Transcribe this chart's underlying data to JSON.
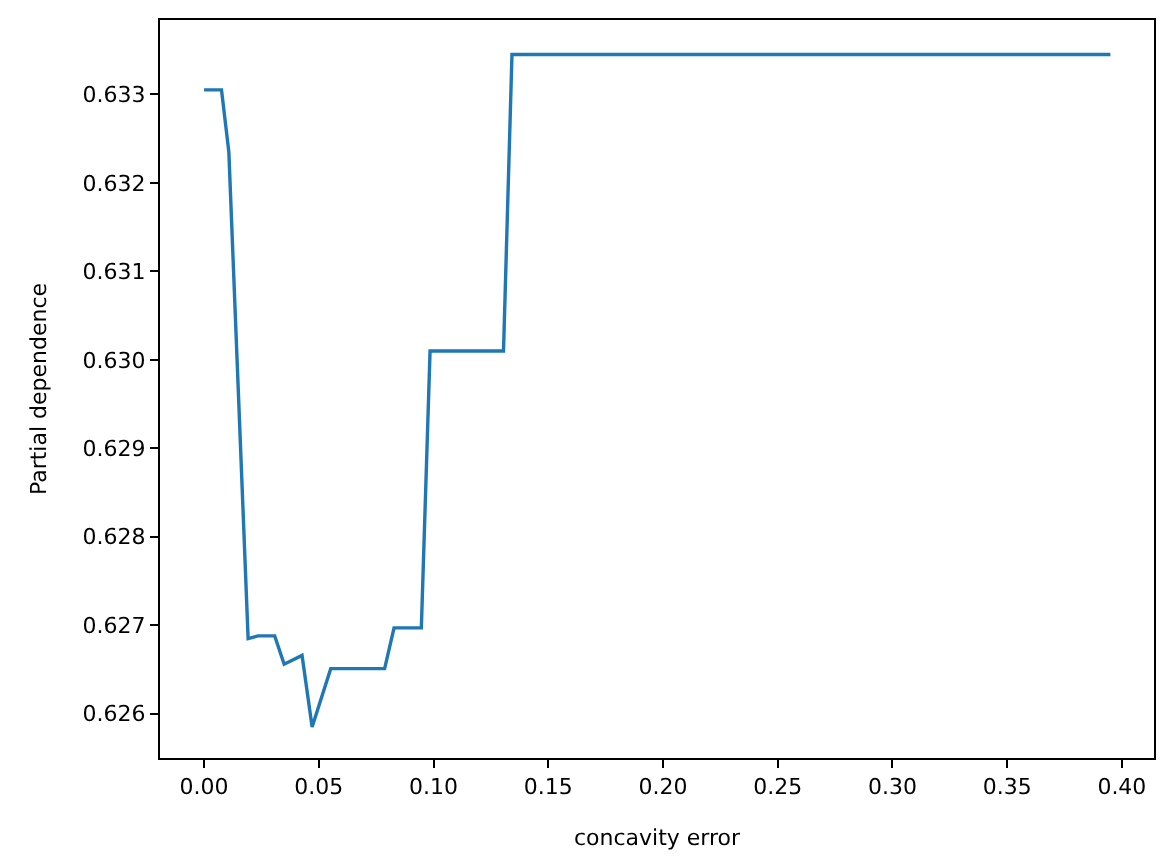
{
  "chart_data": {
    "type": "line",
    "xlabel": "concavity error",
    "ylabel": "Partial dependence",
    "x": [
      0.0,
      0.0076,
      0.0108,
      0.0192,
      0.0235,
      0.0308,
      0.0349,
      0.0427,
      0.0471,
      0.0552,
      0.0787,
      0.0828,
      0.0947,
      0.0985,
      0.1305,
      0.1342,
      0.395
    ],
    "series": [
      {
        "color": "#1f77b4",
        "values": [
          0.63305,
          0.63305,
          0.63235,
          0.62685,
          0.62688,
          0.62688,
          0.62656,
          0.62666,
          0.62585,
          0.62651,
          0.62651,
          0.62697,
          0.62697,
          0.6301,
          0.6301,
          0.63345,
          0.63345
        ]
      }
    ],
    "xlim": [
      -0.0192,
      0.414
    ],
    "ylim": [
      0.6255,
      0.63384
    ],
    "xticks": [
      {
        "value": 0.0,
        "label": "0.00"
      },
      {
        "value": 0.05,
        "label": "0.05"
      },
      {
        "value": 0.1,
        "label": "0.10"
      },
      {
        "value": 0.15,
        "label": "0.15"
      },
      {
        "value": 0.2,
        "label": "0.20"
      },
      {
        "value": 0.25,
        "label": "0.25"
      },
      {
        "value": 0.3,
        "label": "0.30"
      },
      {
        "value": 0.35,
        "label": "0.35"
      },
      {
        "value": 0.4,
        "label": "0.40"
      }
    ],
    "yticks": [
      0.626,
      0.627,
      0.628,
      0.629,
      {
        "value": 0.63,
        "label": "0.630"
      },
      0.631,
      0.632,
      0.633
    ],
    "grid": false,
    "line_style": "solid",
    "marker": "none"
  }
}
